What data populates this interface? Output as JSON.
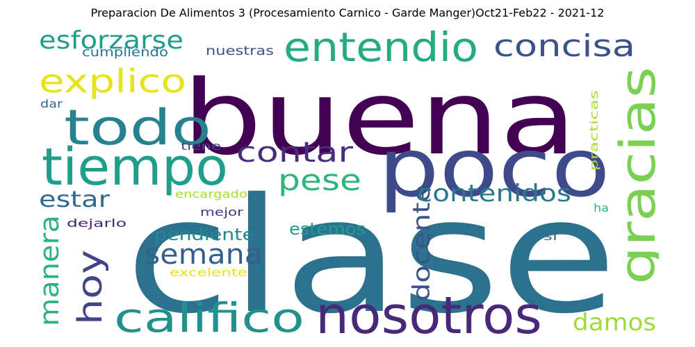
{
  "title": "Preparacion De Alimentos 3 (Procesamiento Carnico - Garde Manger)Oct21-Feb22 - 2021-12",
  "chart_data": {
    "type": "wordcloud",
    "title": "Preparacion De Alimentos 3 (Procesamiento Carnico - Garde Manger)Oct21-Feb22 - 2021-12",
    "words": [
      {
        "text": "clase",
        "color": "#2c728e",
        "orientation": "horizontal"
      },
      {
        "text": "buena",
        "color": "#440154",
        "orientation": "horizontal"
      },
      {
        "text": "poco",
        "color": "#3e4a89",
        "orientation": "horizontal"
      },
      {
        "text": "nosotros",
        "color": "#482878",
        "orientation": "horizontal"
      },
      {
        "text": "tiempo",
        "color": "#1f9e89",
        "orientation": "horizontal"
      },
      {
        "text": "todo",
        "color": "#26828e",
        "orientation": "horizontal"
      },
      {
        "text": "entendio",
        "color": "#25ab82",
        "orientation": "horizontal"
      },
      {
        "text": "gracias",
        "color": "#7ad151",
        "orientation": "vertical"
      },
      {
        "text": "califico",
        "color": "#21918c",
        "orientation": "horizontal"
      },
      {
        "text": "explico",
        "color": "#e5e419",
        "orientation": "horizontal"
      },
      {
        "text": "concisa",
        "color": "#3b528b",
        "orientation": "horizontal"
      },
      {
        "text": "hoy",
        "color": "#414487",
        "orientation": "vertical"
      },
      {
        "text": "contar",
        "color": "#472d7b",
        "orientation": "horizontal"
      },
      {
        "text": "semana",
        "color": "#355f8d",
        "orientation": "horizontal"
      },
      {
        "text": "esforzarse",
        "color": "#1f9e89",
        "orientation": "horizontal"
      },
      {
        "text": "pese",
        "color": "#2fb47c",
        "orientation": "horizontal"
      },
      {
        "text": "manera",
        "color": "#2db27d",
        "orientation": "vertical"
      },
      {
        "text": "docente",
        "color": "#3b528b",
        "orientation": "vertical"
      },
      {
        "text": "contenidos",
        "color": "#2a788e",
        "orientation": "horizontal"
      },
      {
        "text": "damos",
        "color": "#a0da39",
        "orientation": "horizontal"
      },
      {
        "text": "estar",
        "color": "#31688e",
        "orientation": "horizontal"
      },
      {
        "text": "pendiente",
        "color": "#23888e",
        "orientation": "horizontal"
      },
      {
        "text": "estemos",
        "color": "#1fa187",
        "orientation": "horizontal"
      },
      {
        "text": "cumpliendo",
        "color": "#2c728e",
        "orientation": "horizontal"
      },
      {
        "text": "nuestras",
        "color": "#3b528b",
        "orientation": "horizontal"
      },
      {
        "text": "dar",
        "color": "#31688e",
        "orientation": "horizontal"
      },
      {
        "text": "tiene",
        "color": "#414487",
        "orientation": "horizontal"
      },
      {
        "text": "encargado",
        "color": "#a8db34",
        "orientation": "horizontal"
      },
      {
        "text": "mejor",
        "color": "#46327e",
        "orientation": "horizontal"
      },
      {
        "text": "dejarlo",
        "color": "#482475",
        "orientation": "horizontal"
      },
      {
        "text": "excelente",
        "color": "#e5e419",
        "orientation": "horizontal"
      },
      {
        "text": "practicas",
        "color": "#a8db34",
        "orientation": "vertical"
      },
      {
        "text": "ha",
        "color": "#2db27d",
        "orientation": "horizontal"
      },
      {
        "text": "si",
        "color": "#31688e",
        "orientation": "horizontal"
      }
    ]
  }
}
